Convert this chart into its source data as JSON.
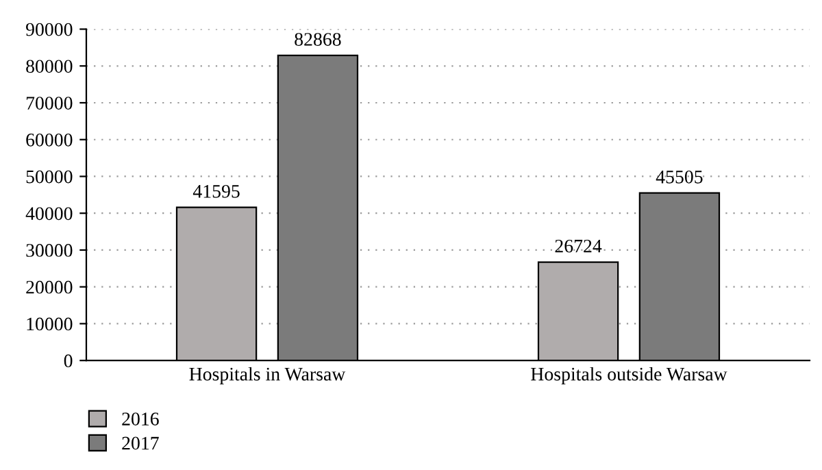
{
  "chart_data": {
    "type": "bar",
    "categories": [
      "Hospitals in Warsaw",
      "Hospitals outside Warsaw"
    ],
    "series": [
      {
        "name": "2016",
        "color": "#b0acac",
        "values": [
          41595,
          26724
        ]
      },
      {
        "name": "2017",
        "color": "#7b7b7b",
        "values": [
          82868,
          45505
        ]
      }
    ],
    "ylim": [
      0,
      90000
    ],
    "yticks": [
      0,
      10000,
      20000,
      30000,
      40000,
      50000,
      60000,
      70000,
      80000,
      90000
    ],
    "grid": "y",
    "legend": "bottom left",
    "data_labels": true
  }
}
